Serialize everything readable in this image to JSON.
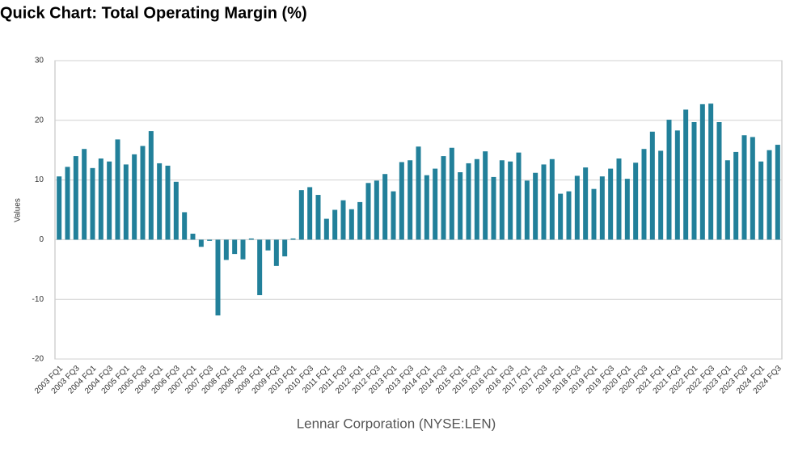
{
  "chart_data": {
    "type": "bar",
    "title": "Quick Chart: Total Operating Margin (%)",
    "y_label": "Values",
    "x_label": "Lennar Corporation (NYSE:LEN)",
    "categories": [
      "2003 FQ1",
      null,
      "2003 FQ3",
      null,
      "2004 FQ1",
      null,
      "2004 FQ3",
      null,
      "2005 FQ1",
      null,
      "2005 FQ3",
      null,
      "2006 FQ1",
      null,
      "2006 FQ3",
      null,
      "2007 FQ1",
      null,
      "2007 FQ3",
      null,
      "2008 FQ1",
      null,
      "2008 FQ3",
      null,
      "2009 FQ1",
      null,
      "2009 FQ3",
      null,
      "2010 FQ1",
      null,
      "2010 FQ3",
      null,
      "2011 FQ1",
      null,
      "2011 FQ3",
      null,
      "2012 FQ1",
      null,
      "2012 FQ3",
      null,
      "2013 FQ1",
      null,
      "2013 FQ3",
      null,
      "2014 FQ1",
      null,
      "2014 FQ3",
      null,
      "2015 FQ1",
      null,
      "2015 FQ3",
      null,
      "2016 FQ1",
      null,
      "2016 FQ3",
      null,
      "2017 FQ1",
      null,
      "2017 FQ3",
      null,
      "2018 FQ1",
      null,
      "2018 FQ3",
      null,
      "2019 FQ1",
      null,
      "2019 FQ3",
      null,
      "2020 FQ1",
      null,
      "2020 FQ3",
      null,
      "2021 FQ1",
      null,
      "2021 FQ3",
      null,
      "2022 FQ1",
      null,
      "2022 FQ3",
      null,
      "2023 FQ1",
      null,
      "2023 FQ3",
      null,
      "2024 FQ1",
      null,
      "2024 FQ3"
    ],
    "values": [
      10.6,
      12.2,
      14.0,
      15.2,
      12.0,
      13.6,
      13.1,
      16.8,
      12.6,
      14.3,
      15.7,
      18.2,
      12.8,
      12.4,
      9.7,
      4.6,
      1.0,
      -1.2,
      -0.2,
      -12.7,
      -3.4,
      -2.4,
      -3.3,
      0.2,
      -9.3,
      -1.8,
      -4.4,
      -2.8,
      0.2,
      8.3,
      8.8,
      7.5,
      3.5,
      5.0,
      6.6,
      5.1,
      6.3,
      9.5,
      9.9,
      11.0,
      8.1,
      13.0,
      13.3,
      15.6,
      10.8,
      11.9,
      14.0,
      15.4,
      11.3,
      12.8,
      13.5,
      14.8,
      10.5,
      13.3,
      13.1,
      14.6,
      9.9,
      11.2,
      12.6,
      13.5,
      7.7,
      8.1,
      10.7,
      12.1,
      8.5,
      10.6,
      11.9,
      13.6,
      10.2,
      12.9,
      15.2,
      18.1,
      14.9,
      20.1,
      18.3,
      21.8,
      19.7,
      22.7,
      22.8,
      19.7,
      13.3,
      14.7,
      17.5,
      17.2,
      13.1,
      15.0,
      15.9
    ],
    "color": "#22809a",
    "ylim": [
      -20,
      30
    ],
    "yticks": [
      -20,
      -10,
      0,
      10,
      20,
      30
    ],
    "grid": true
  }
}
